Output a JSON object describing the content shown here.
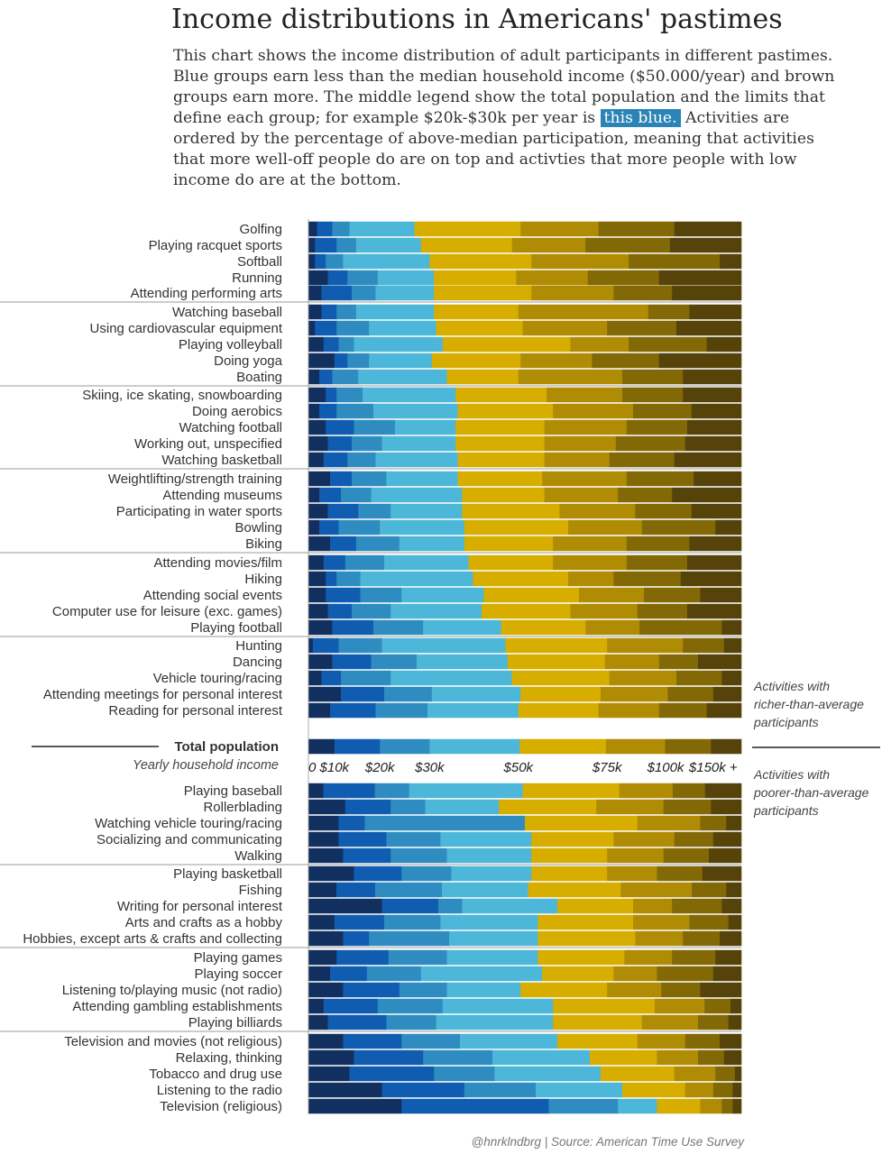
{
  "title": "Income distributions in Americans' pastimes",
  "subtitle_before": "This chart shows the income distribution of adult participants in different pastimes. Blue groups earn less than the median household income ($50.000/year) and brown groups earn more. The middle legend show the total population and the limits that define each group; for example $20k-$30k per year is ",
  "subtitle_highlight": "this blue.",
  "subtitle_after": " Activities are ordered by the percentage of above-median participation, meaning that activities that more well-off people do are on top and activties that more people with low income do are at the bottom.",
  "colors": [
    "#12305f",
    "#0f5cb0",
    "#2f8cc0",
    "#4cb7d8",
    "#d7ad00",
    "#b08c05",
    "#836806",
    "#55430a"
  ],
  "credit": "@hnrklndbrg | Source: American Time Use Survey",
  "annotations": {
    "rich": [
      "Activities with",
      "richer-than-average",
      "participants"
    ],
    "poor": [
      "Activities with",
      "poorer-than-average",
      "participants"
    ]
  },
  "chart_data": {
    "type": "stacked-bar-horizontal",
    "unit": "% of participants",
    "income_groups": [
      "$0-$10k",
      "$10k-$20k",
      "$20k-$30k",
      "$30k-$50k",
      "$50k-$75k",
      "$75k-$100k",
      "$100k-$150k",
      "$150k+"
    ],
    "axis_ticks": [
      {
        "label": "0",
        "value": 0
      },
      {
        "label": "$10k",
        "value": 6
      },
      {
        "label": "$20k",
        "value": 16.5
      },
      {
        "label": "$30k",
        "value": 28
      },
      {
        "label": "$50k",
        "value": 48.5
      },
      {
        "label": "$75k",
        "value": 69
      },
      {
        "label": "$100k",
        "value": 82.5
      },
      {
        "label": "$150k +",
        "value": 93.5
      }
    ],
    "total_population": {
      "label": "Total population",
      "legend_label": "Yearly household income",
      "values": [
        6,
        10.5,
        11.5,
        20.8,
        19.9,
        13.7,
        10.6,
        7.0
      ]
    },
    "richer": [
      {
        "name": "Golfing",
        "values": [
          2,
          3.5,
          4,
          15,
          24.5,
          18,
          17.5,
          15.5
        ]
      },
      {
        "name": "Playing racquet sports",
        "values": [
          1.5,
          5,
          4.5,
          15,
          21,
          17,
          19.5,
          16.5
        ]
      },
      {
        "name": "Softball",
        "values": [
          1.5,
          2.5,
          4,
          20,
          23.5,
          22.5,
          21,
          5
        ]
      },
      {
        "name": "Running",
        "values": [
          4.5,
          4.5,
          7,
          13,
          19,
          16.5,
          16.5,
          19
        ]
      },
      {
        "name": "Attending performing arts",
        "values": [
          3,
          7,
          5.5,
          13.5,
          22.5,
          19,
          13.5,
          16
        ]
      },
      {
        "name": "Watching baseball",
        "values": [
          3,
          3.5,
          4.5,
          18,
          19.5,
          30,
          9.5,
          12
        ]
      },
      {
        "name": "Using cardiovascular equipment",
        "values": [
          1.5,
          5,
          7.5,
          15.5,
          20,
          19.5,
          16,
          15
        ]
      },
      {
        "name": "Playing volleyball",
        "values": [
          3.5,
          3.5,
          3.5,
          20.5,
          29.5,
          13.5,
          18,
          8
        ]
      },
      {
        "name": "Doing yoga",
        "values": [
          6,
          3,
          5,
          14.5,
          20.5,
          16.5,
          15.5,
          19
        ]
      },
      {
        "name": "Boating",
        "values": [
          2.5,
          3,
          6,
          20.5,
          16.5,
          24,
          14,
          13.5
        ]
      },
      {
        "name": "Skiing, ice skating, snowboarding",
        "values": [
          4,
          2.5,
          6,
          21.5,
          21,
          17.5,
          14,
          13.5
        ]
      },
      {
        "name": "Doing aerobics",
        "values": [
          2.5,
          4,
          8.5,
          19.5,
          22,
          18.5,
          13.5,
          11.5
        ]
      },
      {
        "name": "Watching football",
        "values": [
          4,
          6.5,
          9.5,
          14,
          20.5,
          19,
          14,
          12.5
        ]
      },
      {
        "name": "Working out, unspecified",
        "values": [
          4.5,
          5.5,
          7,
          17,
          20.5,
          16.5,
          16,
          13
        ]
      },
      {
        "name": "Watching basketball",
        "values": [
          3.5,
          5.5,
          6.5,
          19,
          20,
          15,
          15,
          15.5
        ]
      },
      {
        "name": "Weightlifting/strength training",
        "values": [
          5,
          5,
          8,
          16.5,
          19.5,
          19.5,
          15.5,
          11
        ]
      },
      {
        "name": "Attending museums",
        "values": [
          2.5,
          5,
          7,
          21,
          19,
          17,
          12.5,
          16
        ]
      },
      {
        "name": "Participating in water sports",
        "values": [
          4.5,
          7,
          7.5,
          16.5,
          22.5,
          17.5,
          13,
          11.5
        ]
      },
      {
        "name": "Bowling",
        "values": [
          2.5,
          4.5,
          9.5,
          19.5,
          24,
          17,
          17,
          6
        ]
      },
      {
        "name": "Biking",
        "values": [
          5,
          6,
          10,
          15,
          20.5,
          17,
          14.5,
          12
        ]
      },
      {
        "name": "Attending movies/film",
        "values": [
          3.5,
          5,
          9,
          19.5,
          19.5,
          17,
          14,
          12.5
        ]
      },
      {
        "name": "Hiking",
        "values": [
          4,
          2.5,
          5.5,
          26,
          22,
          10.5,
          15.5,
          14
        ]
      },
      {
        "name": "Attending social events",
        "values": [
          4,
          8,
          9.5,
          19,
          22,
          15,
          13,
          9.5
        ]
      },
      {
        "name": "Computer use for leisure (exc. games)",
        "values": [
          4.5,
          5.5,
          9,
          21,
          20.5,
          15.5,
          11.5,
          12.5
        ]
      },
      {
        "name": "Playing football",
        "values": [
          5.5,
          9.5,
          11.5,
          18,
          19.5,
          12.5,
          19,
          4.5
        ]
      },
      {
        "name": "Hunting",
        "values": [
          1,
          6,
          10,
          28.5,
          23.5,
          17.5,
          9.5,
          4
        ]
      },
      {
        "name": "Dancing",
        "values": [
          5.5,
          9,
          10.5,
          21,
          22.5,
          12.5,
          9,
          10
        ]
      },
      {
        "name": "Vehicle touring/racing",
        "values": [
          3,
          4.5,
          11.5,
          28,
          22.5,
          15.5,
          10.5,
          4.5
        ]
      },
      {
        "name": "Attending meetings for personal interest",
        "values": [
          7.5,
          10,
          11,
          20.5,
          18.5,
          15.5,
          10.5,
          6.5
        ]
      },
      {
        "name": "Reading for personal interest",
        "values": [
          5,
          10.5,
          12,
          21,
          18.5,
          14,
          11,
          8
        ]
      }
    ],
    "poorer": [
      {
        "name": "Playing baseball",
        "values": [
          3.5,
          12,
          8,
          26.5,
          22.5,
          12.5,
          7.5,
          8.5
        ]
      },
      {
        "name": "Rollerblading",
        "values": [
          8.5,
          10.5,
          8,
          17,
          22.5,
          15.5,
          11,
          7
        ]
      },
      {
        "name": "Watching vehicle touring/racing",
        "values": [
          7,
          6,
          37,
          0,
          26,
          14.5,
          6,
          3.5
        ]
      },
      {
        "name": "Socializing and communicating",
        "values": [
          7,
          11,
          12.5,
          21,
          19,
          14,
          9,
          6.5
        ]
      },
      {
        "name": "Walking",
        "values": [
          8,
          11,
          13,
          19.5,
          17.5,
          13,
          10.5,
          7.5
        ]
      },
      {
        "name": "Playing basketball",
        "values": [
          10.5,
          11,
          11.5,
          18.5,
          17.5,
          11.5,
          10.5,
          9
        ]
      },
      {
        "name": "Fishing",
        "values": [
          6.5,
          9,
          15.5,
          20,
          21.5,
          16.5,
          8,
          3.5
        ]
      },
      {
        "name": "Writing for personal interest",
        "values": [
          17,
          13,
          5.5,
          22,
          17.5,
          9,
          11.5,
          4.5
        ]
      },
      {
        "name": "Arts and crafts as a hobby",
        "values": [
          6,
          11.5,
          13,
          22.5,
          22,
          13,
          9,
          3
        ]
      },
      {
        "name": "Hobbies, except arts & crafts and collecting",
        "values": [
          8,
          6,
          18.5,
          20.5,
          22.5,
          11,
          8.5,
          5
        ]
      },
      {
        "name": "Playing games",
        "values": [
          6.5,
          12,
          13.5,
          21,
          20,
          11,
          10,
          6
        ]
      },
      {
        "name": "Playing soccer",
        "values": [
          5,
          8.5,
          12.5,
          28,
          16.5,
          10,
          13,
          6.5
        ]
      },
      {
        "name": "Listening to/playing music (not radio)",
        "values": [
          8,
          13,
          11,
          17,
          20,
          12.5,
          9,
          9.5
        ]
      },
      {
        "name": "Attending gambling establishments",
        "values": [
          3.5,
          12.5,
          15,
          25.5,
          23.5,
          11.5,
          6,
          2.5
        ]
      },
      {
        "name": "Playing billiards",
        "values": [
          4.5,
          13.5,
          11.5,
          27,
          20.5,
          13,
          7,
          3
        ]
      },
      {
        "name": "Television and movies (not religious)",
        "values": [
          8,
          13.5,
          13.5,
          22.5,
          18.5,
          11,
          8,
          5
        ]
      },
      {
        "name": "Relaxing, thinking",
        "values": [
          10.5,
          16,
          16,
          22.5,
          15.5,
          9.5,
          6,
          4
        ]
      },
      {
        "name": "Tobacco and drug use",
        "values": [
          9.5,
          19.5,
          14,
          24.5,
          17,
          9.5,
          4.5,
          1.5
        ]
      },
      {
        "name": "Listening to the radio",
        "values": [
          17,
          19,
          16.5,
          20,
          14.5,
          6.5,
          4.5,
          2
        ]
      },
      {
        "name": "Television (religious)",
        "values": [
          21.5,
          34,
          16,
          9,
          10,
          5,
          2.5,
          2
        ]
      }
    ]
  }
}
